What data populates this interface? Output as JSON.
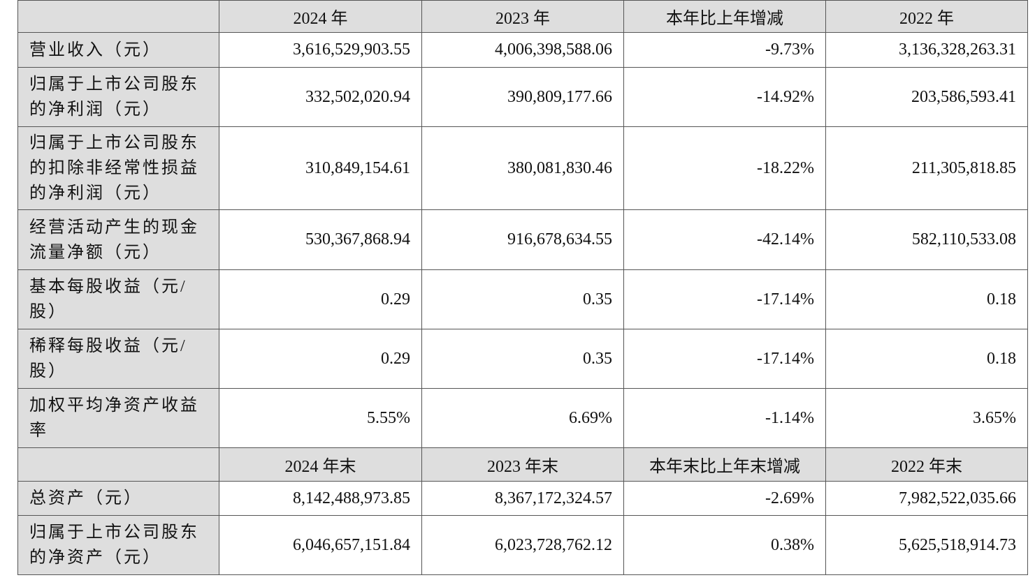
{
  "table": {
    "header": [
      "2024 年",
      "2023 年",
      "本年比上年增减",
      "2022 年"
    ],
    "rows": [
      {
        "label": [
          "营业收入（元）"
        ],
        "cells": [
          "3,616,529,903.55",
          "4,006,398,588.06",
          "-9.73%",
          "3,136,328,263.31"
        ]
      },
      {
        "label": [
          "归属于上市公司股东",
          "的净利润（元）"
        ],
        "cells": [
          "332,502,020.94",
          "390,809,177.66",
          "-14.92%",
          "203,586,593.41"
        ]
      },
      {
        "label": [
          "归属于上市公司股东",
          "的扣除非经常性损益",
          "的净利润（元）"
        ],
        "cells": [
          "310,849,154.61",
          "380,081,830.46",
          "-18.22%",
          "211,305,818.85"
        ]
      },
      {
        "label": [
          "经营活动产生的现金",
          "流量净额（元）"
        ],
        "cells": [
          "530,367,868.94",
          "916,678,634.55",
          "-42.14%",
          "582,110,533.08"
        ]
      },
      {
        "label": [
          "基本每股收益（元/",
          "股）"
        ],
        "cells": [
          "0.29",
          "0.35",
          "-17.14%",
          "0.18"
        ]
      },
      {
        "label": [
          "稀释每股收益（元/",
          "股）"
        ],
        "cells": [
          "0.29",
          "0.35",
          "-17.14%",
          "0.18"
        ]
      },
      {
        "label": [
          "加权平均净资产收益",
          "率"
        ],
        "cells": [
          "5.55%",
          "6.69%",
          "-1.14%",
          "3.65%"
        ]
      }
    ],
    "header2": [
      "2024 年末",
      "2023 年末",
      "本年末比上年末增减",
      "2022 年末"
    ],
    "rows2": [
      {
        "label": [
          "总资产（元）"
        ],
        "cells": [
          "8,142,488,973.85",
          "8,367,172,324.57",
          "-2.69%",
          "7,982,522,035.66"
        ]
      },
      {
        "label": [
          "归属于上市公司股东",
          "的净资产（元）"
        ],
        "cells": [
          "6,046,657,151.84",
          "6,023,728,762.12",
          "0.38%",
          "5,625,518,914.73"
        ]
      }
    ]
  }
}
